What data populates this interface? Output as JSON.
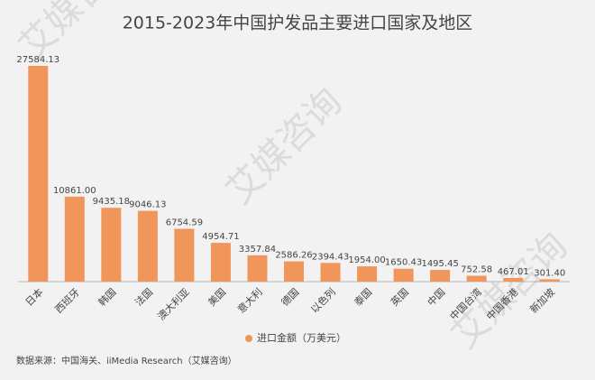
{
  "chart_data": {
    "type": "bar",
    "title": "2015-2023年中国护发品主要进口国家及地区",
    "categories": [
      "日本",
      "西班牙",
      "韩国",
      "法国",
      "澳大利亚",
      "美国",
      "意大利",
      "德国",
      "以色列",
      "泰国",
      "英国",
      "中国",
      "中国台湾",
      "中国香港",
      "新加坡"
    ],
    "series": [
      {
        "name": "进口金额（万美元）",
        "color": "#f0965a",
        "values": [
          27584.13,
          10861.0,
          9435.18,
          9046.13,
          6754.59,
          4954.71,
          3357.84,
          2586.26,
          2394.43,
          1954.0,
          1650.43,
          1495.45,
          752.58,
          467.01,
          301.4
        ],
        "value_labels": [
          "27584.13",
          "10861.00",
          "9435.18",
          "9046.13",
          "6754.59",
          "4954.71",
          "3357.84",
          "2586.26",
          "2394.43",
          "1954.00",
          "1650.43",
          "1495.45",
          "752.58",
          "467.01",
          "301.40"
        ]
      }
    ],
    "source": "数据来源：中国海关、iiMedia Research（艾媒咨询）",
    "watermark": "艾媒咨询"
  }
}
